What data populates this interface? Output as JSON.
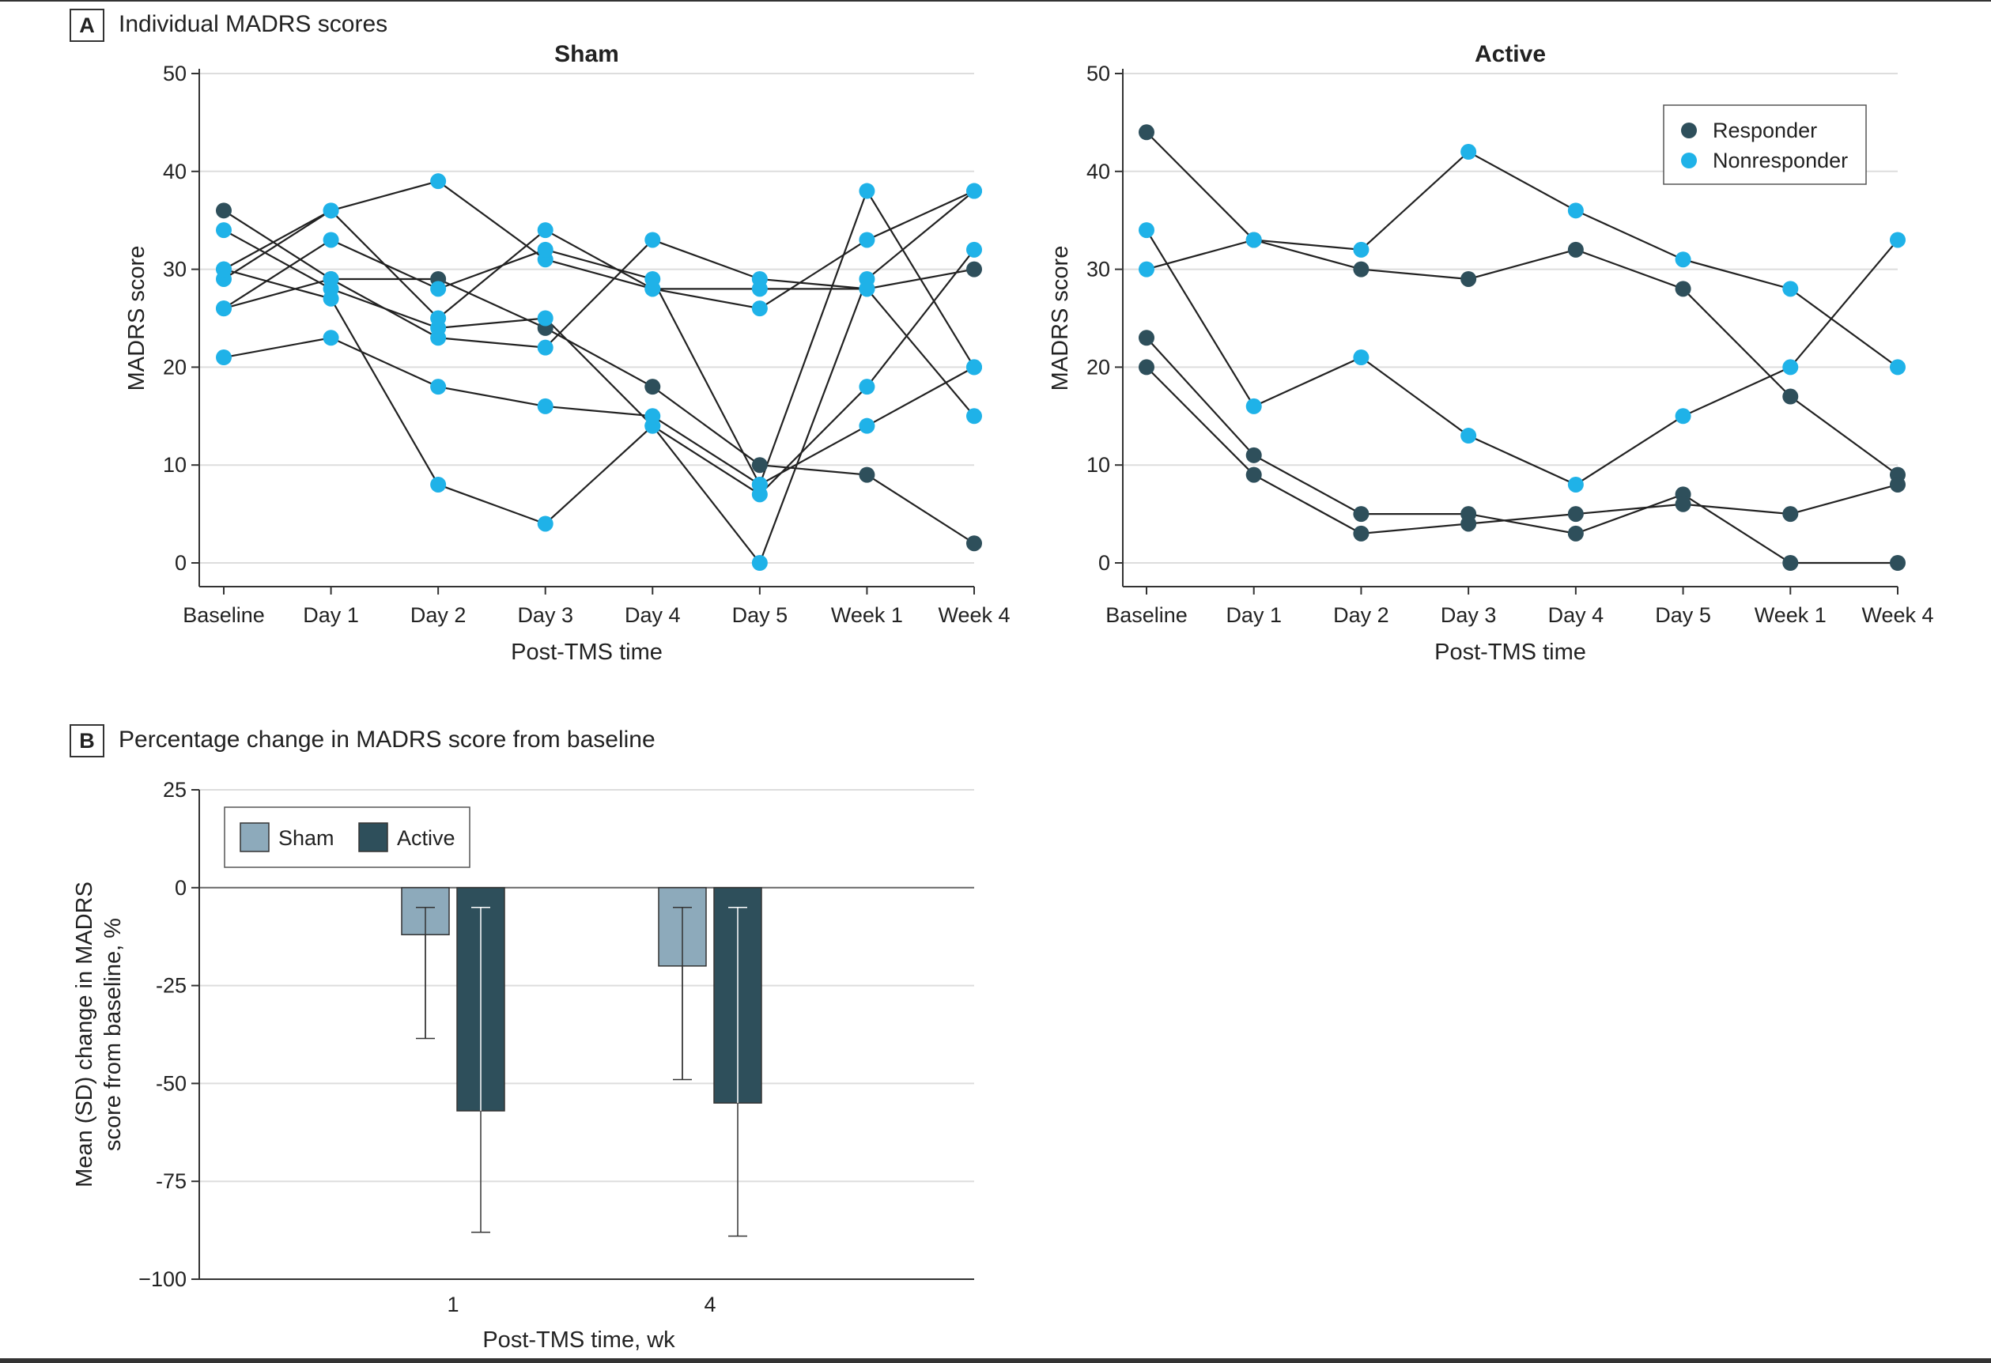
{
  "panel_a": {
    "letter": "A",
    "title": "Individual MADRS scores"
  },
  "panel_b": {
    "letter": "B",
    "title": "Percentage change in MADRS score from baseline"
  },
  "colors": {
    "responder": "#2e4f5b",
    "nonresponder": "#1fb2e8",
    "sham_bar": "#8daabb",
    "active_bar": "#2e4f5b",
    "line": "#222222",
    "grid": "#dddddd"
  },
  "chart_data": [
    {
      "id": "sham",
      "type": "line",
      "title": "Sham",
      "xlabel": "Post-TMS time",
      "ylabel": "MADRS score",
      "ylim": [
        0,
        50
      ],
      "yticks": [
        0,
        10,
        20,
        30,
        40,
        50
      ],
      "categories": [
        "Baseline",
        "Day 1",
        "Day 2",
        "Day 3",
        "Day 4",
        "Day 5",
        "Week 1",
        "Week 4"
      ],
      "grid": "horizontal",
      "series": [
        {
          "group": "responder",
          "values": [
            36,
            29,
            29,
            24,
            18,
            10,
            9,
            2
          ],
          "status": [
            "responder",
            "responder",
            "responder",
            "responder",
            "responder",
            "responder",
            "responder",
            "responder"
          ]
        },
        {
          "group": "nonresponder",
          "values": [
            34,
            28,
            24,
            25,
            14,
            0,
            29,
            38
          ],
          "status": [
            "nonresponder",
            "nonresponder",
            "nonresponder",
            "nonresponder",
            "nonresponder",
            "nonresponder",
            "nonresponder",
            "nonresponder"
          ]
        },
        {
          "group": "nonresponder",
          "values": [
            30,
            36,
            39,
            31,
            28,
            28,
            28,
            30
          ],
          "status": [
            "nonresponder",
            "nonresponder",
            "nonresponder",
            "nonresponder",
            "nonresponder",
            "nonresponder",
            "nonresponder",
            "responder"
          ]
        },
        {
          "group": "nonresponder",
          "values": [
            29,
            36,
            25,
            34,
            28,
            26,
            33,
            38
          ],
          "status": [
            "nonresponder",
            "nonresponder",
            "nonresponder",
            "nonresponder",
            "nonresponder",
            "nonresponder",
            "nonresponder",
            "nonresponder"
          ]
        },
        {
          "group": "nonresponder",
          "values": [
            26,
            33,
            28,
            32,
            29,
            8,
            38,
            20
          ],
          "status": [
            "nonresponder",
            "nonresponder",
            "nonresponder",
            "nonresponder",
            "nonresponder",
            "nonresponder",
            "nonresponder",
            "nonresponder"
          ]
        },
        {
          "group": "nonresponder",
          "values": [
            30,
            27,
            8,
            4,
            14,
            7,
            18,
            32
          ],
          "status": [
            "nonresponder",
            "nonresponder",
            "nonresponder",
            "nonresponder",
            "nonresponder",
            "nonresponder",
            "nonresponder",
            "nonresponder"
          ]
        },
        {
          "group": "nonresponder",
          "values": [
            26,
            29,
            23,
            22,
            33,
            29,
            28,
            15
          ],
          "status": [
            "nonresponder",
            "nonresponder",
            "nonresponder",
            "nonresponder",
            "nonresponder",
            "nonresponder",
            "nonresponder",
            "nonresponder"
          ]
        },
        {
          "group": "nonresponder",
          "values": [
            21,
            23,
            18,
            16,
            15,
            8,
            14,
            20
          ],
          "status": [
            "nonresponder",
            "nonresponder",
            "nonresponder",
            "nonresponder",
            "nonresponder",
            "nonresponder",
            "nonresponder",
            "nonresponder"
          ]
        }
      ]
    },
    {
      "id": "active",
      "type": "line",
      "title": "Active",
      "xlabel": "Post-TMS time",
      "ylabel": "MADRS score",
      "ylim": [
        0,
        50
      ],
      "yticks": [
        0,
        10,
        20,
        30,
        40,
        50
      ],
      "categories": [
        "Baseline",
        "Day 1",
        "Day 2",
        "Day 3",
        "Day 4",
        "Day 5",
        "Week 1",
        "Week 4"
      ],
      "grid": "horizontal",
      "legend": {
        "position": "top-right",
        "entries": [
          {
            "key": "responder",
            "label": "Responder"
          },
          {
            "key": "nonresponder",
            "label": "Nonresponder"
          }
        ]
      },
      "series": [
        {
          "group": "responder",
          "values": [
            44,
            33,
            30,
            29,
            32,
            28,
            17,
            9
          ],
          "status": [
            "responder",
            "responder",
            "responder",
            "responder",
            "responder",
            "responder",
            "responder",
            "responder"
          ]
        },
        {
          "group": "nonresponder",
          "values": [
            34,
            16,
            21,
            13,
            8,
            15,
            20,
            33
          ],
          "status": [
            "nonresponder",
            "nonresponder",
            "nonresponder",
            "nonresponder",
            "nonresponder",
            "nonresponder",
            "nonresponder",
            "nonresponder"
          ]
        },
        {
          "group": "nonresponder",
          "values": [
            30,
            33,
            32,
            42,
            36,
            31,
            28,
            20
          ],
          "status": [
            "nonresponder",
            "nonresponder",
            "nonresponder",
            "nonresponder",
            "nonresponder",
            "nonresponder",
            "nonresponder",
            "nonresponder"
          ]
        },
        {
          "group": "responder",
          "values": [
            23,
            11,
            5,
            5,
            3,
            7,
            0,
            0
          ],
          "status": [
            "responder",
            "responder",
            "responder",
            "responder",
            "responder",
            "responder",
            "responder",
            "responder"
          ]
        },
        {
          "group": "responder",
          "values": [
            20,
            9,
            3,
            4,
            5,
            6,
            5,
            8
          ],
          "status": [
            "responder",
            "responder",
            "responder",
            "responder",
            "responder",
            "responder",
            "responder",
            "responder"
          ]
        }
      ]
    },
    {
      "id": "pct_change",
      "type": "bar",
      "title": "",
      "xlabel": "Post-TMS time, wk",
      "ylabel_lines": [
        "Mean (SD) change in MADRS",
        "score from baseline, %"
      ],
      "ylim": [
        -100,
        25
      ],
      "yticks": [
        25,
        0,
        -25,
        -50,
        -75,
        -100
      ],
      "ytick_labels": [
        "25",
        "0",
        "-25",
        "-50",
        "-75",
        "−100"
      ],
      "categories": [
        "1",
        "4"
      ],
      "legend": {
        "position": "top-left",
        "entries": [
          {
            "key": "sham",
            "label": "Sham"
          },
          {
            "key": "active",
            "label": "Active"
          }
        ]
      },
      "series": [
        {
          "key": "sham",
          "name": "Sham",
          "values": [
            -12,
            -20
          ],
          "error_low": [
            -38.5,
            -49
          ]
        },
        {
          "key": "active",
          "name": "Active",
          "values": [
            -57,
            -55
          ],
          "error_low": [
            -88,
            -89
          ]
        }
      ]
    }
  ]
}
